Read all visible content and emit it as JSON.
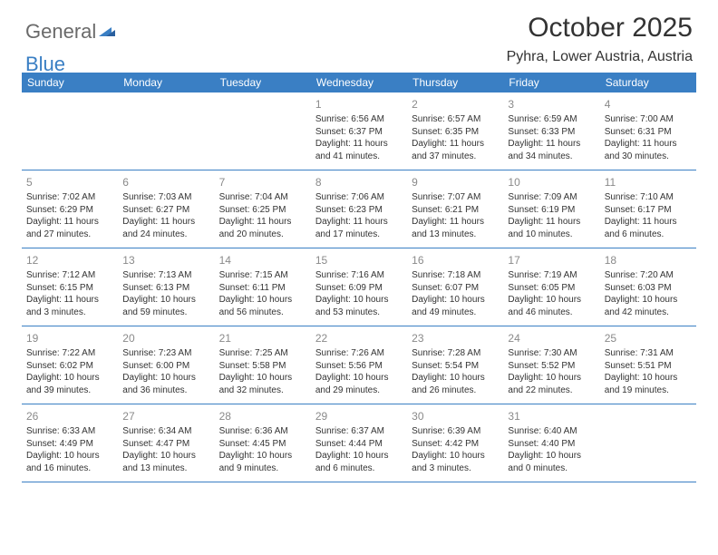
{
  "brand": {
    "part1": "General",
    "part2": "Blue"
  },
  "header": {
    "month_title": "October 2025",
    "location": "Pyhra, Lower Austria, Austria"
  },
  "calendar": {
    "day_headers": [
      "Sunday",
      "Monday",
      "Tuesday",
      "Wednesday",
      "Thursday",
      "Friday",
      "Saturday"
    ],
    "colors": {
      "header_bg": "#3a7fc4",
      "header_fg": "#ffffff",
      "border": "#3a7fc4",
      "daynum": "#8a8a8a",
      "text": "#333333",
      "bg": "#ffffff"
    },
    "weeks": [
      [
        {},
        {},
        {},
        {
          "num": "1",
          "sunrise": "Sunrise: 6:56 AM",
          "sunset": "Sunset: 6:37 PM",
          "daylight1": "Daylight: 11 hours",
          "daylight2": "and 41 minutes."
        },
        {
          "num": "2",
          "sunrise": "Sunrise: 6:57 AM",
          "sunset": "Sunset: 6:35 PM",
          "daylight1": "Daylight: 11 hours",
          "daylight2": "and 37 minutes."
        },
        {
          "num": "3",
          "sunrise": "Sunrise: 6:59 AM",
          "sunset": "Sunset: 6:33 PM",
          "daylight1": "Daylight: 11 hours",
          "daylight2": "and 34 minutes."
        },
        {
          "num": "4",
          "sunrise": "Sunrise: 7:00 AM",
          "sunset": "Sunset: 6:31 PM",
          "daylight1": "Daylight: 11 hours",
          "daylight2": "and 30 minutes."
        }
      ],
      [
        {
          "num": "5",
          "sunrise": "Sunrise: 7:02 AM",
          "sunset": "Sunset: 6:29 PM",
          "daylight1": "Daylight: 11 hours",
          "daylight2": "and 27 minutes."
        },
        {
          "num": "6",
          "sunrise": "Sunrise: 7:03 AM",
          "sunset": "Sunset: 6:27 PM",
          "daylight1": "Daylight: 11 hours",
          "daylight2": "and 24 minutes."
        },
        {
          "num": "7",
          "sunrise": "Sunrise: 7:04 AM",
          "sunset": "Sunset: 6:25 PM",
          "daylight1": "Daylight: 11 hours",
          "daylight2": "and 20 minutes."
        },
        {
          "num": "8",
          "sunrise": "Sunrise: 7:06 AM",
          "sunset": "Sunset: 6:23 PM",
          "daylight1": "Daylight: 11 hours",
          "daylight2": "and 17 minutes."
        },
        {
          "num": "9",
          "sunrise": "Sunrise: 7:07 AM",
          "sunset": "Sunset: 6:21 PM",
          "daylight1": "Daylight: 11 hours",
          "daylight2": "and 13 minutes."
        },
        {
          "num": "10",
          "sunrise": "Sunrise: 7:09 AM",
          "sunset": "Sunset: 6:19 PM",
          "daylight1": "Daylight: 11 hours",
          "daylight2": "and 10 minutes."
        },
        {
          "num": "11",
          "sunrise": "Sunrise: 7:10 AM",
          "sunset": "Sunset: 6:17 PM",
          "daylight1": "Daylight: 11 hours",
          "daylight2": "and 6 minutes."
        }
      ],
      [
        {
          "num": "12",
          "sunrise": "Sunrise: 7:12 AM",
          "sunset": "Sunset: 6:15 PM",
          "daylight1": "Daylight: 11 hours",
          "daylight2": "and 3 minutes."
        },
        {
          "num": "13",
          "sunrise": "Sunrise: 7:13 AM",
          "sunset": "Sunset: 6:13 PM",
          "daylight1": "Daylight: 10 hours",
          "daylight2": "and 59 minutes."
        },
        {
          "num": "14",
          "sunrise": "Sunrise: 7:15 AM",
          "sunset": "Sunset: 6:11 PM",
          "daylight1": "Daylight: 10 hours",
          "daylight2": "and 56 minutes."
        },
        {
          "num": "15",
          "sunrise": "Sunrise: 7:16 AM",
          "sunset": "Sunset: 6:09 PM",
          "daylight1": "Daylight: 10 hours",
          "daylight2": "and 53 minutes."
        },
        {
          "num": "16",
          "sunrise": "Sunrise: 7:18 AM",
          "sunset": "Sunset: 6:07 PM",
          "daylight1": "Daylight: 10 hours",
          "daylight2": "and 49 minutes."
        },
        {
          "num": "17",
          "sunrise": "Sunrise: 7:19 AM",
          "sunset": "Sunset: 6:05 PM",
          "daylight1": "Daylight: 10 hours",
          "daylight2": "and 46 minutes."
        },
        {
          "num": "18",
          "sunrise": "Sunrise: 7:20 AM",
          "sunset": "Sunset: 6:03 PM",
          "daylight1": "Daylight: 10 hours",
          "daylight2": "and 42 minutes."
        }
      ],
      [
        {
          "num": "19",
          "sunrise": "Sunrise: 7:22 AM",
          "sunset": "Sunset: 6:02 PM",
          "daylight1": "Daylight: 10 hours",
          "daylight2": "and 39 minutes."
        },
        {
          "num": "20",
          "sunrise": "Sunrise: 7:23 AM",
          "sunset": "Sunset: 6:00 PM",
          "daylight1": "Daylight: 10 hours",
          "daylight2": "and 36 minutes."
        },
        {
          "num": "21",
          "sunrise": "Sunrise: 7:25 AM",
          "sunset": "Sunset: 5:58 PM",
          "daylight1": "Daylight: 10 hours",
          "daylight2": "and 32 minutes."
        },
        {
          "num": "22",
          "sunrise": "Sunrise: 7:26 AM",
          "sunset": "Sunset: 5:56 PM",
          "daylight1": "Daylight: 10 hours",
          "daylight2": "and 29 minutes."
        },
        {
          "num": "23",
          "sunrise": "Sunrise: 7:28 AM",
          "sunset": "Sunset: 5:54 PM",
          "daylight1": "Daylight: 10 hours",
          "daylight2": "and 26 minutes."
        },
        {
          "num": "24",
          "sunrise": "Sunrise: 7:30 AM",
          "sunset": "Sunset: 5:52 PM",
          "daylight1": "Daylight: 10 hours",
          "daylight2": "and 22 minutes."
        },
        {
          "num": "25",
          "sunrise": "Sunrise: 7:31 AM",
          "sunset": "Sunset: 5:51 PM",
          "daylight1": "Daylight: 10 hours",
          "daylight2": "and 19 minutes."
        }
      ],
      [
        {
          "num": "26",
          "sunrise": "Sunrise: 6:33 AM",
          "sunset": "Sunset: 4:49 PM",
          "daylight1": "Daylight: 10 hours",
          "daylight2": "and 16 minutes."
        },
        {
          "num": "27",
          "sunrise": "Sunrise: 6:34 AM",
          "sunset": "Sunset: 4:47 PM",
          "daylight1": "Daylight: 10 hours",
          "daylight2": "and 13 minutes."
        },
        {
          "num": "28",
          "sunrise": "Sunrise: 6:36 AM",
          "sunset": "Sunset: 4:45 PM",
          "daylight1": "Daylight: 10 hours",
          "daylight2": "and 9 minutes."
        },
        {
          "num": "29",
          "sunrise": "Sunrise: 6:37 AM",
          "sunset": "Sunset: 4:44 PM",
          "daylight1": "Daylight: 10 hours",
          "daylight2": "and 6 minutes."
        },
        {
          "num": "30",
          "sunrise": "Sunrise: 6:39 AM",
          "sunset": "Sunset: 4:42 PM",
          "daylight1": "Daylight: 10 hours",
          "daylight2": "and 3 minutes."
        },
        {
          "num": "31",
          "sunrise": "Sunrise: 6:40 AM",
          "sunset": "Sunset: 4:40 PM",
          "daylight1": "Daylight: 10 hours",
          "daylight2": "and 0 minutes."
        },
        {}
      ]
    ]
  }
}
